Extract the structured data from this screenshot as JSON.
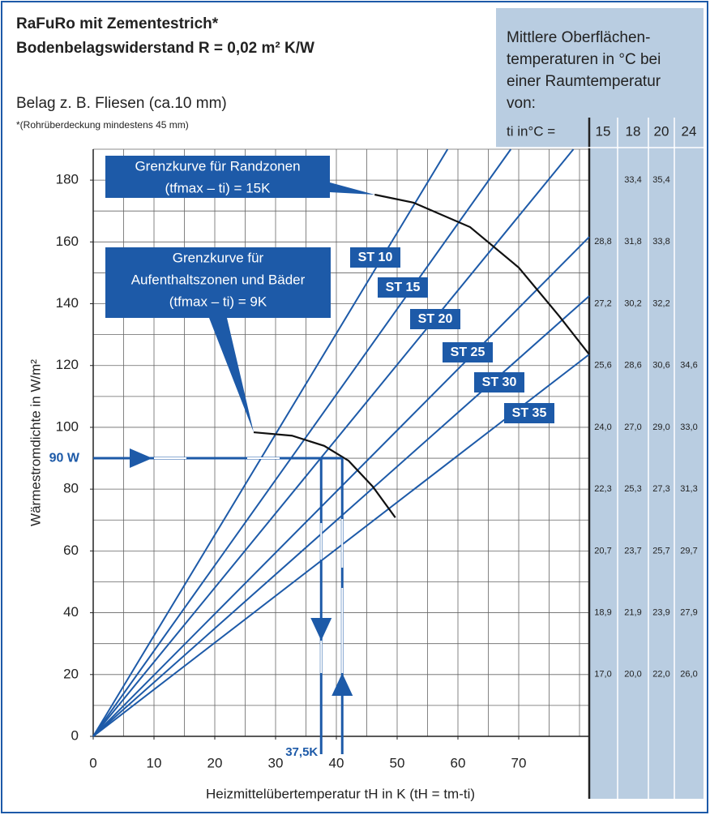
{
  "chart_data": {
    "type": "line",
    "title": "RaFuRo mit Zementestrich*",
    "subtitle": "Bodenbelagswiderstand R = 0,02 m² K/W",
    "notes": [
      "Belag z. B. Fliesen (ca.10 mm)",
      "*(Rohrüberdeckung mindestens 45 mm)"
    ],
    "y_label": "Wärmestromdichte in W/m²",
    "x_label": "Heizmittelübertemperatur tH in K (tH = tm-ti)",
    "xlim": [
      0,
      81.6
    ],
    "ylim": [
      0,
      190
    ],
    "xticks": [
      0,
      10,
      20,
      30,
      40,
      50,
      60,
      70
    ],
    "yticks": [
      0,
      20,
      40,
      60,
      80,
      100,
      120,
      140,
      160,
      180
    ],
    "xgrid_step": 5,
    "ygrid_step": 10,
    "grid": true,
    "color": "#1d5aa8",
    "series": [
      {
        "name": "ST 10",
        "x": [
          0,
          58.3
        ],
        "values": [
          0,
          190
        ]
      },
      {
        "name": "ST 15",
        "x": [
          0,
          68.7
        ],
        "values": [
          0,
          190
        ]
      },
      {
        "name": "ST 20",
        "x": [
          0,
          79
        ],
        "values": [
          0,
          190
        ]
      },
      {
        "name": "ST 25",
        "x": [
          0,
          81.6
        ],
        "values": [
          0,
          161.6
        ]
      },
      {
        "name": "ST 30",
        "x": [
          0,
          81.6
        ],
        "values": [
          0,
          142.5
        ]
      },
      {
        "name": "ST 35",
        "x": [
          0,
          81.6
        ],
        "values": [
          0,
          123.6
        ]
      }
    ],
    "curves": [
      {
        "label": [
          "Grenzkurve für Randzonen",
          "(tfmax – ti) = 15K"
        ],
        "x": [
          46.3,
          52.7,
          62,
          70,
          76.7,
          81.6
        ],
        "values": [
          175.3,
          172.7,
          164.8,
          151.7,
          135.9,
          123.6
        ]
      },
      {
        "label": [
          "Grenzkurve für",
          "Aufenthaltszonen und Bäder",
          "(tfmax – ti) = 9K"
        ],
        "x": [
          26.4,
          32.7,
          38,
          42,
          46,
          49.7
        ],
        "values": [
          98.4,
          97.3,
          94,
          89.2,
          80.8,
          70.8
        ]
      }
    ],
    "annotations": [
      {
        "label": "90 W",
        "y": 90
      },
      {
        "label": "37,5K",
        "x": 37.5
      }
    ],
    "table": {
      "title": [
        "Mittlere Oberflächen-",
        "temperaturen in °C bei",
        "einer Raumtemperatur",
        "von:"
      ],
      "row_header": "ti in°C =",
      "columns": [
        "15",
        "18",
        "20",
        "24"
      ],
      "rows": [
        [
          null,
          "33,4",
          "35,4",
          null
        ],
        [
          "28,8",
          "31,8",
          "33,8",
          null
        ],
        [
          "27,2",
          "30,2",
          "32,2",
          null
        ],
        [
          "25,6",
          "28,6",
          "30,6",
          "34,6"
        ],
        [
          "24,0",
          "27,0",
          "29,0",
          "33,0"
        ],
        [
          "22,3",
          "25,3",
          "27,3",
          "31,3"
        ],
        [
          "20,7",
          "23,7",
          "25,7",
          "29,7"
        ],
        [
          "18,9",
          "21,9",
          "23,9",
          "27,9"
        ],
        [
          "17,0",
          "20,0",
          "22,0",
          "26,0"
        ]
      ]
    }
  }
}
